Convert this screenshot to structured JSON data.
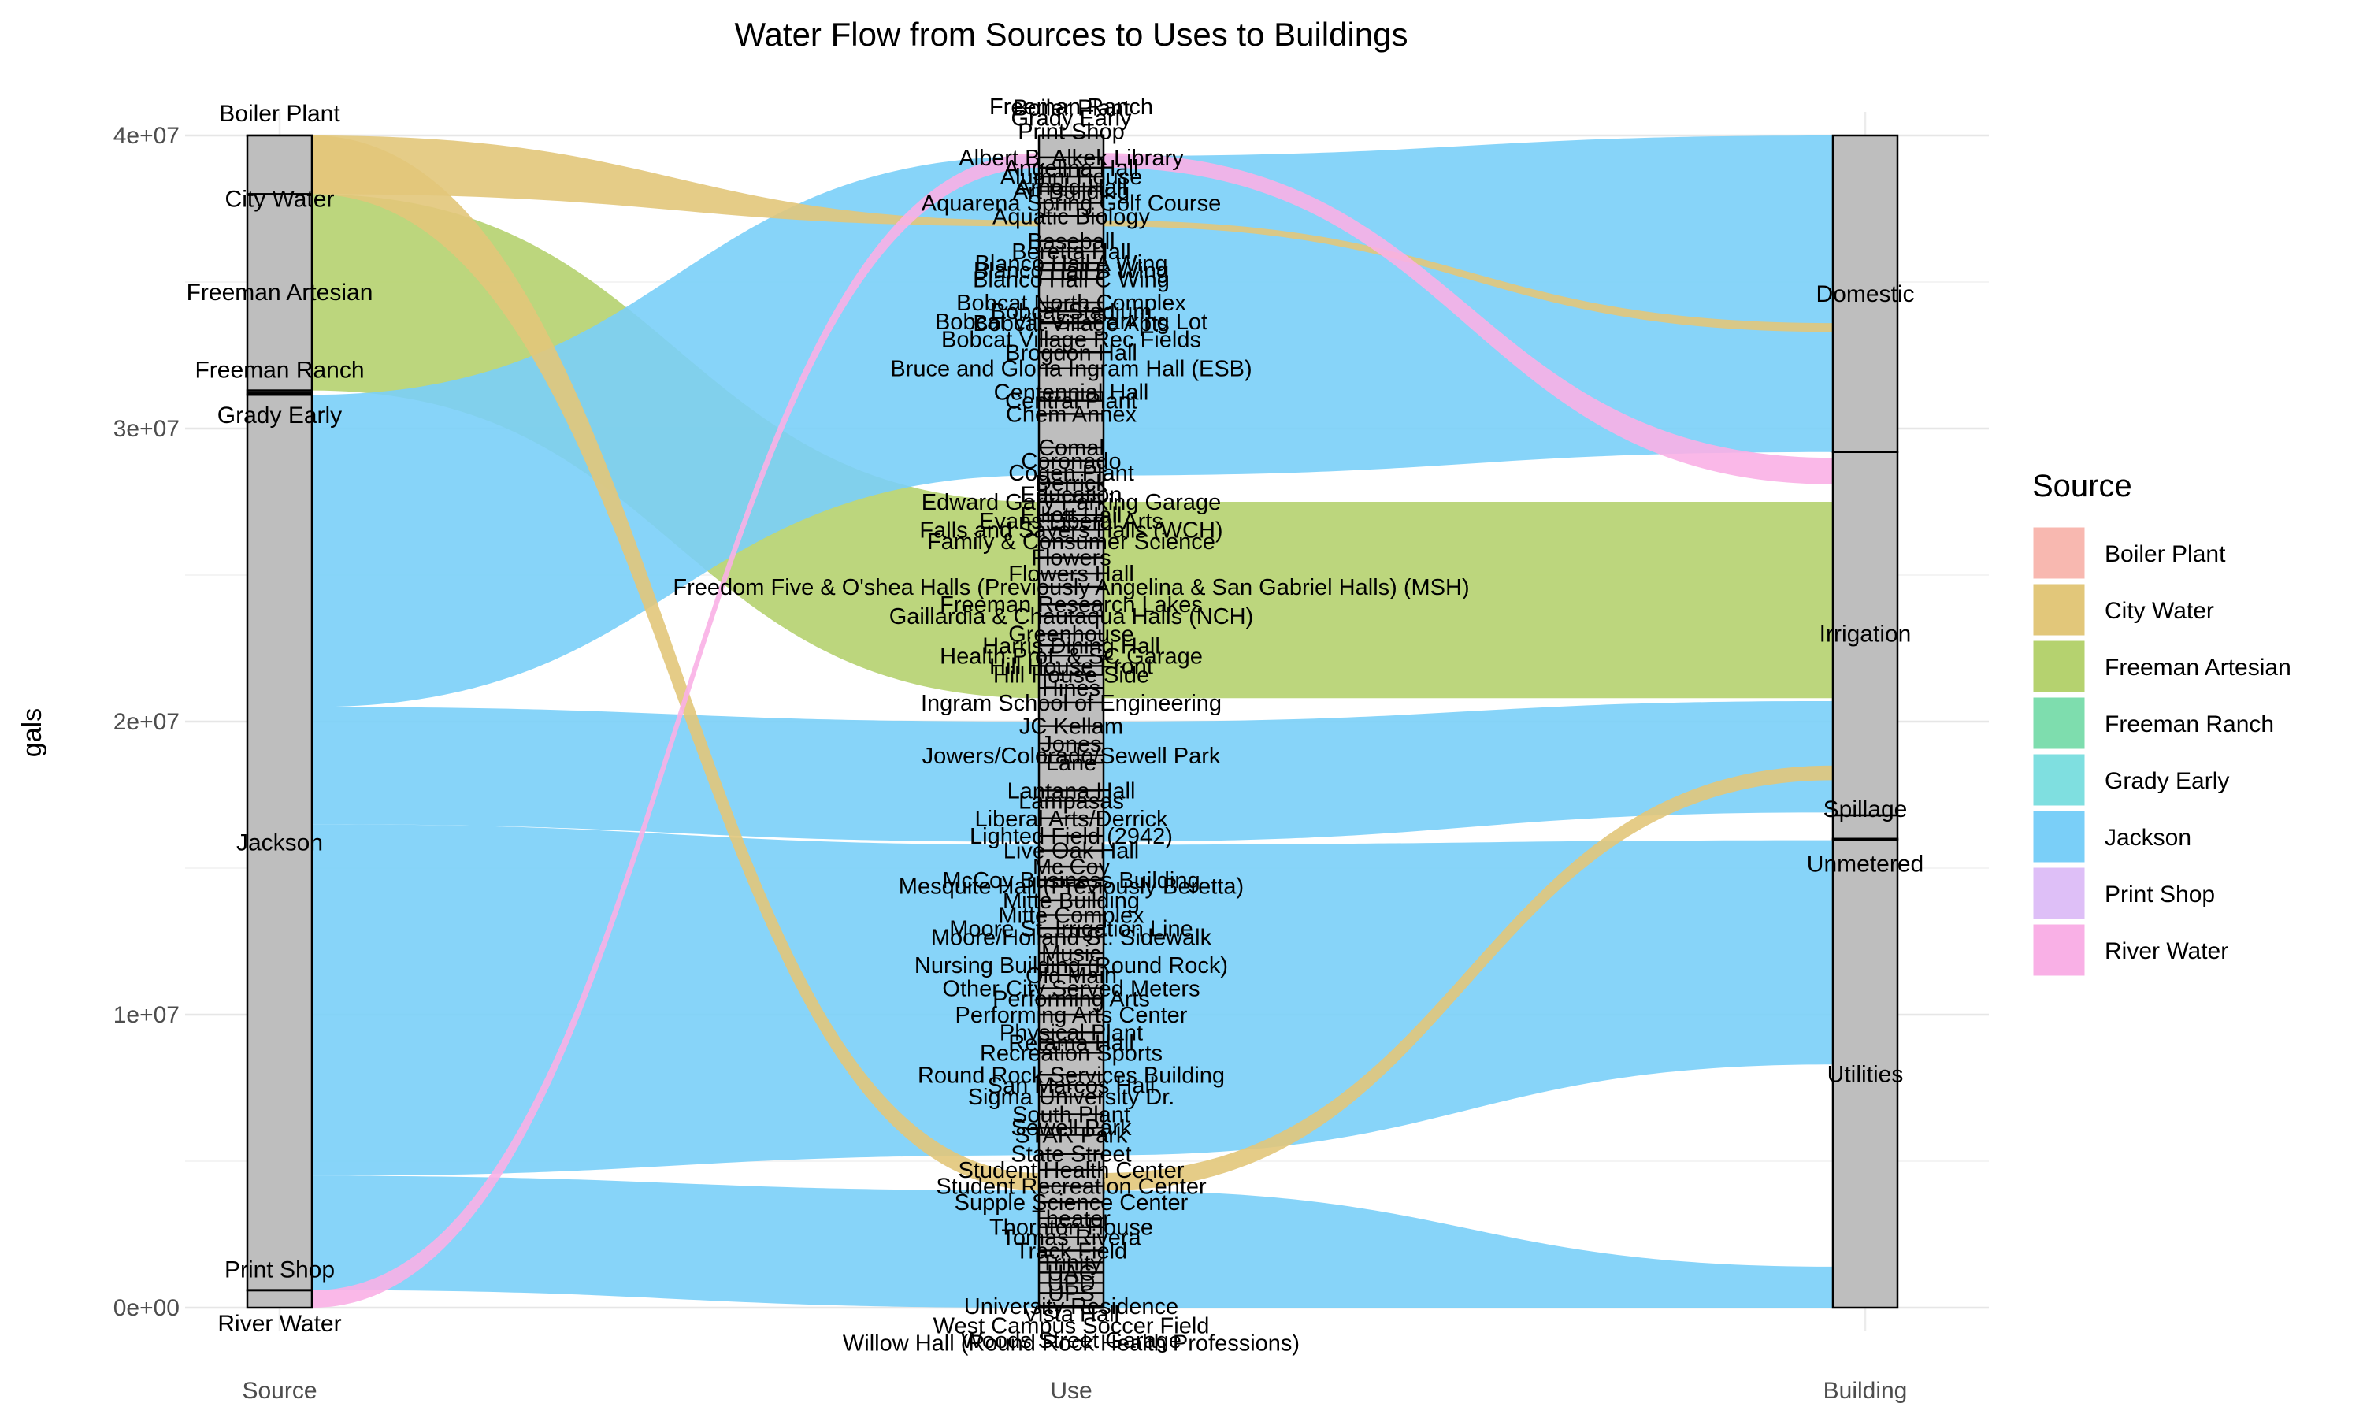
{
  "chart_data": {
    "type": "sankey",
    "title": "Water Flow from Sources to Uses to Buildings",
    "ylabel": "gals",
    "xlabel": "",
    "ylim": [
      0,
      40000000
    ],
    "y_ticks": [
      {
        "value": 0,
        "label": "0e+00"
      },
      {
        "value": 10000000,
        "label": "1e+07"
      },
      {
        "value": 20000000,
        "label": "2e+07"
      },
      {
        "value": 30000000,
        "label": "3e+07"
      },
      {
        "value": 40000000,
        "label": "4e+07"
      }
    ],
    "axes": [
      "Source",
      "Use",
      "Building"
    ],
    "legend": {
      "title": "Source",
      "placement": "right",
      "entries": [
        {
          "name": "Boiler Plant",
          "color": "#F8B8B0"
        },
        {
          "name": "City Water",
          "color": "#E2C77A"
        },
        {
          "name": "Freeman Artesian",
          "color": "#B5D26F"
        },
        {
          "name": "Freeman Ranch",
          "color": "#7EDDAE"
        },
        {
          "name": "Grady Early",
          "color": "#7FDFE0"
        },
        {
          "name": "Jackson",
          "color": "#7ACFF8"
        },
        {
          "name": "Print Shop",
          "color": "#DEBFF7"
        },
        {
          "name": "River Water",
          "color": "#F9B0E6"
        }
      ]
    },
    "sources": [
      {
        "name": "Boiler Plant",
        "label": "Boiler Plant",
        "from": 39999000,
        "to": 40000000
      },
      {
        "name": "City Water",
        "label": "City Water",
        "from": 38000000,
        "to": 39999000
      },
      {
        "name": "Freeman Artesian",
        "label": "Freeman Artesian",
        "from": 31300000,
        "to": 38000000
      },
      {
        "name": "Freeman Ranch",
        "label": "Freeman Ranch",
        "from": 31200000,
        "to": 31300000
      },
      {
        "name": "Grady Early",
        "label": "Grady Early",
        "from": 31150000,
        "to": 31200000
      },
      {
        "name": "Jackson",
        "label": "Jackson",
        "from": 600000,
        "to": 31150000
      },
      {
        "name": "Print Shop",
        "label": "Print Shop",
        "from": 590000,
        "to": 600000
      },
      {
        "name": "River Water",
        "label": "River Water",
        "from": 0,
        "to": 590000
      }
    ],
    "buildings": [
      {
        "name": "Domestic",
        "from": 29200000,
        "to": 40000000
      },
      {
        "name": "Irrigation",
        "from": 16800000,
        "to": 29200000
      },
      {
        "name": "Spillage",
        "from": 16000000,
        "to": 16800000
      },
      {
        "name": "Unmetered",
        "from": 15950000,
        "to": 16000000
      },
      {
        "name": "Utilities",
        "from": 0,
        "to": 15950000
      }
    ],
    "use_labels": [
      {
        "text": "Freeman Ranch",
        "y": 41000000
      },
      {
        "text": "Boiler Plant",
        "y": 40950000
      },
      {
        "text": "Grady Early",
        "y": 40600000
      },
      {
        "text": "Print Shop",
        "y": 40150000
      },
      {
        "text": "Albert B. Alkek Library",
        "y": 39250000
      },
      {
        "text": "Angelina Hall",
        "y": 38900000
      },
      {
        "text": "Alumni House",
        "y": 38600000
      },
      {
        "text": "Arnold Hall",
        "y": 38250000
      },
      {
        "text": "Art Building",
        "y": 38100000
      },
      {
        "text": "Aquarena Spring Golf Course",
        "y": 37700000
      },
      {
        "text": "Aquatic Biology",
        "y": 37250000
      },
      {
        "text": "Baseball",
        "y": 36400000
      },
      {
        "text": "Beretta Hall",
        "y": 36050000
      },
      {
        "text": "Blanco Hall A Wing",
        "y": 35650000
      },
      {
        "text": "Blanco Hall B Wing",
        "y": 35400000
      },
      {
        "text": "Blanco Hall C Wing",
        "y": 35100000
      },
      {
        "text": "Bobcat North Complex",
        "y": 34300000
      },
      {
        "text": "Bobcat Stadium",
        "y": 34000000
      },
      {
        "text": "Bobcat Village Apts",
        "y": 33600000
      },
      {
        "text": "Bobcat Vill. SE Parking Lot",
        "y": 33650000
      },
      {
        "text": "Bobcat Village Rec Fields",
        "y": 33050000
      },
      {
        "text": "Brogdon Hall",
        "y": 32600000
      },
      {
        "text": "Bruce and Gloria Ingram Hall (ESB)",
        "y": 32050000
      },
      {
        "text": "Centennial Hall",
        "y": 31250000
      },
      {
        "text": "Central Plant",
        "y": 30950000
      },
      {
        "text": "Chem Annex",
        "y": 30500000
      },
      {
        "text": "Comal",
        "y": 29350000
      },
      {
        "text": "Coronado",
        "y": 28900000
      },
      {
        "text": "Cogen Plant",
        "y": 28500000
      },
      {
        "text": "Derrick",
        "y": 28150000
      },
      {
        "text": "Education",
        "y": 27750000
      },
      {
        "text": "Edward Gary Parking Garage",
        "y": 27500000
      },
      {
        "text": "Elliott Hall",
        "y": 27050000
      },
      {
        "text": "Evans Liberal Arts",
        "y": 26850000
      },
      {
        "text": "Falls and Sayers Halls (WCH)",
        "y": 26550000
      },
      {
        "text": "Family & Consumer Science",
        "y": 26150000
      },
      {
        "text": "Flowers",
        "y": 25600000
      },
      {
        "text": "Flowers Hall",
        "y": 25050000
      },
      {
        "text": "Freedom Five & O'shea Halls (Previously Angelina & San Gabriel Halls) (MSH)",
        "y": 24600000
      },
      {
        "text": "Freeman Research Lakes",
        "y": 24000000
      },
      {
        "text": "Gaillardia & Chautaqua Halls (NCH)",
        "y": 23600000
      },
      {
        "text": "Greenhouse",
        "y": 23000000
      },
      {
        "text": "Harris Dining Hall",
        "y": 22600000
      },
      {
        "text": "Health Prof. & SC Garage",
        "y": 22250000
      },
      {
        "text": "Hill House Front",
        "y": 21900000
      },
      {
        "text": "Hill House Side",
        "y": 21600000
      },
      {
        "text": "Hines",
        "y": 21150000
      },
      {
        "text": "Ingram School of Engineering",
        "y": 20650000
      },
      {
        "text": "JC Kellam",
        "y": 19850000
      },
      {
        "text": "Jones",
        "y": 19250000
      },
      {
        "text": "Jowers/Colorado/Sewell Park",
        "y": 18850000
      },
      {
        "text": "Lane",
        "y": 18600000
      },
      {
        "text": "Lantana Hall",
        "y": 17650000
      },
      {
        "text": "Lampasas",
        "y": 17300000
      },
      {
        "text": "Liberal Arts/Derrick",
        "y": 16700000
      },
      {
        "text": "Lighted Field (2942)",
        "y": 16100000
      },
      {
        "text": "Live Oak Hall",
        "y": 15600000
      },
      {
        "text": "Mc Coy",
        "y": 15050000
      },
      {
        "text": "McCoy Business Building",
        "y": 14600000
      },
      {
        "text": "Mesquite Hall (Previously Beretta)",
        "y": 14400000
      },
      {
        "text": "Mitte Building",
        "y": 13900000
      },
      {
        "text": "Mitte Complex",
        "y": 13400000
      },
      {
        "text": "Moore St. Irrigation Line",
        "y": 12950000
      },
      {
        "text": "Moore/Holland St. Sidewalk",
        "y": 12650000
      },
      {
        "text": "Music",
        "y": 12100000
      },
      {
        "text": "Nursing Building (Round Rock)",
        "y": 11700000
      },
      {
        "text": "Old Main",
        "y": 11350000
      },
      {
        "text": "Other City Served Meters",
        "y": 10900000
      },
      {
        "text": "Performing Arts",
        "y": 10550000
      },
      {
        "text": "Performing Arts Center",
        "y": 10000000
      },
      {
        "text": "Physical Plant",
        "y": 9400000
      },
      {
        "text": "Retama Hall",
        "y": 9050000
      },
      {
        "text": "Recreation Sports",
        "y": 8700000
      },
      {
        "text": "Round Rock Services Building",
        "y": 7950000
      },
      {
        "text": "San Marcos Hall",
        "y": 7600000
      },
      {
        "text": "Sigma University Dr.",
        "y": 7200000
      },
      {
        "text": "South Plant",
        "y": 6600000
      },
      {
        "text": "Sewell Park",
        "y": 6150000
      },
      {
        "text": "STAR Park",
        "y": 5900000
      },
      {
        "text": "State Street",
        "y": 5250000
      },
      {
        "text": "Student Health Center",
        "y": 4700000
      },
      {
        "text": "Student Recreation Center",
        "y": 4150000
      },
      {
        "text": "Supple Science Center",
        "y": 3600000
      },
      {
        "text": "Theater",
        "y": 3050000
      },
      {
        "text": "Thornton House",
        "y": 2750000
      },
      {
        "text": "Tomas Rivera",
        "y": 2400000
      },
      {
        "text": "Track Field",
        "y": 1950000
      },
      {
        "text": "Trinity",
        "y": 1550000
      },
      {
        "text": "UAC",
        "y": 1200000
      },
      {
        "text": "UPD",
        "y": 850000
      },
      {
        "text": "UPS",
        "y": 500000
      },
      {
        "text": "University Residence",
        "y": 50000
      },
      {
        "text": "Vista Hall",
        "y": -200000
      },
      {
        "text": "West Campus Soccer Field",
        "y": -600000
      },
      {
        "text": "Willow Hall (Round Rock Health Professions)",
        "y": -1200000
      },
      {
        "text": "Woods Street Garage",
        "y": -1100000
      }
    ],
    "flows": [
      {
        "source": "Freeman Artesian",
        "s0": 31300000,
        "s1": 38000000,
        "u0": 20800000,
        "u1": 27500000,
        "b0": 20800000,
        "b1": 27500000
      },
      {
        "source": "Jackson",
        "s0": 20500000,
        "s1": 31150000,
        "u0": 28400000,
        "u1": 39300000,
        "b0": 29200000,
        "b1": 40000000
      },
      {
        "source": "Jackson",
        "s0": 16500000,
        "s1": 20500000,
        "u0": 15900000,
        "u1": 20000000,
        "b0": 16900000,
        "b1": 20700000
      },
      {
        "source": "Jackson",
        "s0": 4500000,
        "s1": 16500000,
        "u0": 5200000,
        "u1": 15800000,
        "b0": 8300000,
        "b1": 15950000
      },
      {
        "source": "Jackson",
        "s0": 600000,
        "s1": 4500000,
        "u0": 0,
        "u1": 4000000,
        "b0": 0,
        "b1": 1400000
      },
      {
        "source": "City Water",
        "s0": 38000000,
        "s1": 39999000,
        "u0": 4000000,
        "u1": 4600000,
        "b0": 18000000,
        "b1": 18500000
      },
      {
        "source": "City Water",
        "s0": 38000000,
        "s1": 39999000,
        "u0": 36900000,
        "u1": 37100000,
        "b0": 33300000,
        "b1": 33600000
      },
      {
        "source": "River Water",
        "s0": 0,
        "s1": 590000,
        "u0": 38900000,
        "u1": 39400000,
        "b0": 28100000,
        "b1": 29000000
      }
    ]
  }
}
